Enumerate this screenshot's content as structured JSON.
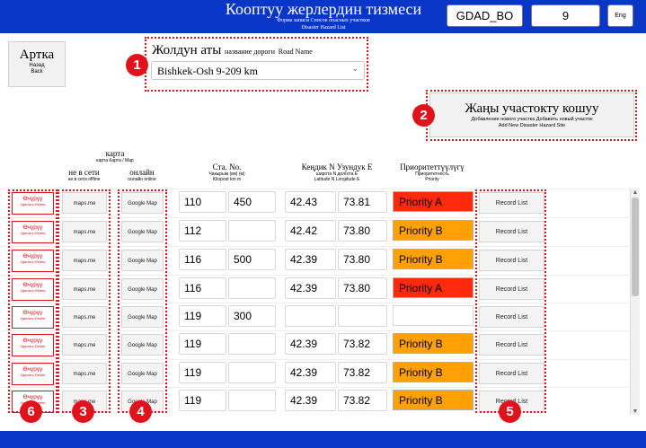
{
  "header": {
    "title": "Кооптуу жерлердин тизмеси",
    "subtitle_ru": "Форма записи Список опасных участков",
    "subtitle_en": "Disaster Hazard List",
    "user_code": "GDAD_BO",
    "page_number": "9",
    "language_button": "Eng"
  },
  "back_button": {
    "label": "Артка",
    "label_ru": "Назад",
    "label_en": "Back"
  },
  "road": {
    "label": "Жолдун аты",
    "label_ru": "название дороги",
    "label_en": "Road Name",
    "selected": "Bishkek-Osh 9-209 km"
  },
  "add_button": {
    "label": "Жаңы участокту кошуу",
    "label_ru": "Добавление нового участка Добавить новый участок",
    "label_en": "Add New Disaster Hazard Site"
  },
  "columns": {
    "map": "карта",
    "map_sub": "карта Карта / Map",
    "offline": "не в сети",
    "offline_sub": "не в сети offline",
    "online": "онлайн",
    "online_sub": "онлайн online",
    "sta": "Ста. No.",
    "sta_sub1": "Чакырым (км) (м)",
    "sta_sub2": "Kilopost km m",
    "latlon": "Кеңдик N Узундук E",
    "latlon_sub1": "широта N долгота E",
    "latlon_sub2": "Latitude N Longitude E",
    "priority": "Приоритеттүүлүгү",
    "priority_sub1": "Приоритетность",
    "priority_sub2": "Priority"
  },
  "rows": [
    {
      "delete": "Өчүрүү",
      "delete_sub": "Удалить Delete",
      "offline": "maps.me",
      "online": "Google Map",
      "km": "110",
      "m": "450",
      "lat": "42.43",
      "lon": "73.81",
      "priority": "Priority A",
      "record": "Record List"
    },
    {
      "delete": "Өчүрүү",
      "delete_sub": "Удалить Delete",
      "offline": "maps.me",
      "online": "Google Map",
      "km": "112",
      "m": "",
      "lat": "42.42",
      "lon": "73.80",
      "priority": "Priority B",
      "record": "Record List"
    },
    {
      "delete": "Өчүрүү",
      "delete_sub": "Удалить Delete",
      "offline": "maps.me",
      "online": "Google Map",
      "km": "116",
      "m": "500",
      "lat": "42.39",
      "lon": "73.80",
      "priority": "Priority B",
      "record": "Record List"
    },
    {
      "delete": "Өчүрүү",
      "delete_sub": "Удалить Delete",
      "offline": "maps.me",
      "online": "Google Map",
      "km": "116",
      "m": "",
      "lat": "42.39",
      "lon": "73.80",
      "priority": "Priority A",
      "record": "Record List"
    },
    {
      "delete": "Өчүрүү",
      "delete_sub": "Удалить Delete",
      "offline": "maps.me",
      "online": "Google Map",
      "km": "119",
      "m": "300",
      "lat": "",
      "lon": "",
      "priority": "",
      "record": "Record List"
    },
    {
      "delete": "Өчүрүү",
      "delete_sub": "Удалить Delete",
      "offline": "maps.me",
      "online": "Google Map",
      "km": "119",
      "m": "",
      "lat": "42.39",
      "lon": "73.82",
      "priority": "Priority B",
      "record": "Record List"
    },
    {
      "delete": "Өчүрүү",
      "delete_sub": "Удалить Delete",
      "offline": "maps.me",
      "online": "Google Map",
      "km": "119",
      "m": "",
      "lat": "42.39",
      "lon": "73.82",
      "priority": "Priority B",
      "record": "Record List"
    },
    {
      "delete": "Өчүрүү",
      "delete_sub": "Удалить Delete",
      "offline": "maps.me",
      "online": "Google Map",
      "km": "119",
      "m": "",
      "lat": "42.39",
      "lon": "73.82",
      "priority": "Priority B",
      "record": "Record List"
    }
  ],
  "priority_colors": {
    "Priority A": "#ff2a0e",
    "Priority B": "#ffa005"
  },
  "markers": [
    "1",
    "2",
    "3",
    "4",
    "5",
    "6"
  ],
  "colors": {
    "header_bar": "#0a36c8",
    "annotation": "#e0121c"
  }
}
